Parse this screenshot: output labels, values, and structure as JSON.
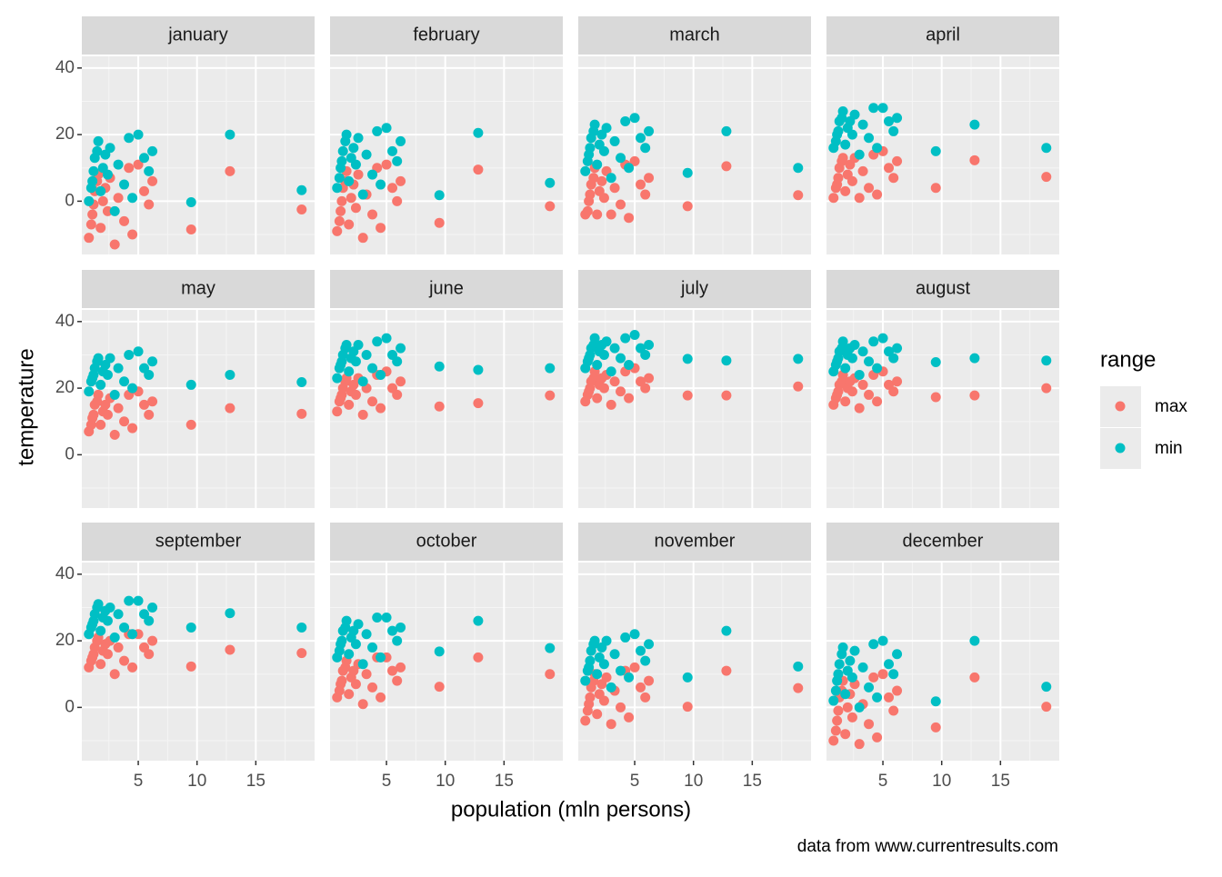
{
  "figure": {
    "xlabel": "population (mln persons)",
    "ylabel": "temperature",
    "legend_title": "range",
    "caption": "data from www.currentresults.com"
  },
  "chart_data": [
    {
      "type": "scatter",
      "title": "january",
      "x": [
        0.8,
        1.0,
        1.1,
        1.2,
        1.3,
        1.5,
        1.6,
        1.8,
        2.0,
        2.2,
        2.4,
        2.6,
        3.0,
        3.3,
        3.8,
        4.2,
        4.5,
        5.0,
        5.5,
        5.9,
        6.2,
        9.5,
        12.8,
        18.9
      ],
      "xlim": [
        0.2,
        20
      ],
      "ylim": [
        -16,
        43.5
      ],
      "xticks": [
        5,
        10,
        15
      ],
      "yticks": [
        0,
        20,
        40
      ],
      "series": [
        {
          "name": "max",
          "color": "#F8766D",
          "values": [
            -11,
            -7,
            -4,
            -1,
            3,
            6,
            8,
            -8,
            0,
            4,
            -3,
            7,
            -13,
            1,
            -6,
            10,
            -10,
            11,
            3,
            -1,
            6,
            -8.5,
            9,
            -2.5
          ]
        },
        {
          "name": "min",
          "color": "#00BFC4",
          "values": [
            0,
            4,
            6,
            9,
            13,
            15,
            18,
            3,
            10,
            14,
            8,
            16,
            -3,
            11,
            5,
            19,
            1,
            20,
            13,
            9,
            15,
            -0.3,
            20,
            3.3
          ]
        }
      ]
    },
    {
      "type": "scatter",
      "title": "february",
      "x": [
        0.8,
        1.0,
        1.1,
        1.2,
        1.3,
        1.5,
        1.6,
        1.8,
        2.0,
        2.2,
        2.4,
        2.6,
        3.0,
        3.3,
        3.8,
        4.2,
        4.5,
        5.0,
        5.5,
        5.9,
        6.2,
        9.5,
        12.8,
        18.9
      ],
      "xlim": [
        0.2,
        20
      ],
      "ylim": [
        -16,
        43.5
      ],
      "xticks": [
        5,
        10,
        15
      ],
      "yticks": [
        0,
        20,
        40
      ],
      "series": [
        {
          "name": "max",
          "color": "#F8766D",
          "values": [
            -9,
            -6,
            -3,
            0,
            4,
            6,
            9,
            -7,
            1,
            5,
            -2,
            8,
            -11,
            2,
            -4,
            10,
            -8,
            11,
            4,
            0,
            6,
            -6.5,
            9.5,
            -1.5
          ]
        },
        {
          "name": "min",
          "color": "#00BFC4",
          "values": [
            4,
            7,
            10,
            12,
            15,
            18,
            20,
            6,
            13,
            16,
            11,
            19,
            2,
            14,
            8,
            21,
            5,
            22,
            15,
            12,
            18,
            1.8,
            20.5,
            5.5
          ]
        }
      ]
    },
    {
      "type": "scatter",
      "title": "march",
      "x": [
        0.8,
        1.0,
        1.1,
        1.2,
        1.3,
        1.5,
        1.6,
        1.8,
        2.0,
        2.2,
        2.4,
        2.6,
        3.0,
        3.3,
        3.8,
        4.2,
        4.5,
        5.0,
        5.5,
        5.9,
        6.2,
        9.5,
        12.8,
        18.9
      ],
      "xlim": [
        0.2,
        20
      ],
      "ylim": [
        -16,
        43.5
      ],
      "xticks": [
        5,
        10,
        15
      ],
      "yticks": [
        0,
        20,
        40
      ],
      "series": [
        {
          "name": "max",
          "color": "#F8766D",
          "values": [
            -4,
            -3,
            0,
            2,
            5,
            7,
            10,
            -4,
            3,
            6,
            1,
            9,
            -4,
            4,
            -1,
            11,
            -5,
            12,
            5,
            2,
            7,
            -1.5,
            10.5,
            1.8
          ]
        },
        {
          "name": "min",
          "color": "#00BFC4",
          "values": [
            9,
            12,
            14,
            16,
            19,
            21,
            23,
            11,
            17,
            20,
            15,
            22,
            7,
            18,
            13,
            24,
            10,
            25,
            19,
            16,
            21,
            8.5,
            21,
            10
          ]
        }
      ]
    },
    {
      "type": "scatter",
      "title": "april",
      "x": [
        0.8,
        1.0,
        1.1,
        1.2,
        1.3,
        1.5,
        1.6,
        1.8,
        2.0,
        2.2,
        2.4,
        2.6,
        3.0,
        3.3,
        3.8,
        4.2,
        4.5,
        5.0,
        5.5,
        5.9,
        6.2,
        9.5,
        12.8,
        18.9
      ],
      "xlim": [
        0.2,
        20
      ],
      "ylim": [
        -16,
        43.5
      ],
      "xticks": [
        5,
        10,
        15
      ],
      "yticks": [
        0,
        20,
        40
      ],
      "series": [
        {
          "name": "max",
          "color": "#F8766D",
          "values": [
            1,
            4,
            5,
            7,
            10,
            12,
            13,
            3,
            8,
            11,
            6,
            13,
            1,
            9,
            4,
            14,
            2,
            15,
            10,
            7,
            12,
            4,
            12.3,
            7.3
          ]
        },
        {
          "name": "min",
          "color": "#00BFC4",
          "values": [
            16,
            18,
            20,
            21,
            24,
            25,
            27,
            17,
            22,
            24,
            20,
            26,
            14,
            23,
            19,
            28,
            16,
            28,
            24,
            21,
            25,
            15,
            23,
            16
          ]
        }
      ]
    },
    {
      "type": "scatter",
      "title": "may",
      "x": [
        0.8,
        1.0,
        1.1,
        1.2,
        1.3,
        1.5,
        1.6,
        1.8,
        2.0,
        2.2,
        2.4,
        2.6,
        3.0,
        3.3,
        3.8,
        4.2,
        4.5,
        5.0,
        5.5,
        5.9,
        6.2,
        9.5,
        12.8,
        18.9
      ],
      "xlim": [
        0.2,
        20
      ],
      "ylim": [
        -16,
        43.5
      ],
      "xticks": [
        5,
        10,
        15
      ],
      "yticks": [
        0,
        20,
        40
      ],
      "series": [
        {
          "name": "max",
          "color": "#F8766D",
          "values": [
            7,
            9,
            11,
            12,
            15,
            16,
            18,
            9,
            13,
            15,
            12,
            17,
            6,
            14,
            10,
            18,
            8,
            19,
            15,
            12,
            16,
            9,
            14,
            12.3
          ]
        },
        {
          "name": "min",
          "color": "#00BFC4",
          "values": [
            19,
            22,
            23,
            24,
            26,
            28,
            29,
            21,
            25,
            27,
            24,
            29,
            18,
            26,
            22,
            30,
            20,
            31,
            26,
            24,
            28,
            21,
            24,
            21.8
          ]
        }
      ]
    },
    {
      "type": "scatter",
      "title": "june",
      "x": [
        0.8,
        1.0,
        1.1,
        1.2,
        1.3,
        1.5,
        1.6,
        1.8,
        2.0,
        2.2,
        2.4,
        2.6,
        3.0,
        3.3,
        3.8,
        4.2,
        4.5,
        5.0,
        5.5,
        5.9,
        6.2,
        9.5,
        12.8,
        18.9
      ],
      "xlim": [
        0.2,
        20
      ],
      "ylim": [
        -16,
        43.5
      ],
      "xticks": [
        5,
        10,
        15
      ],
      "yticks": [
        0,
        20,
        40
      ],
      "series": [
        {
          "name": "max",
          "color": "#F8766D",
          "values": [
            13,
            16,
            17,
            18,
            20,
            22,
            23,
            15,
            19,
            21,
            18,
            23,
            12,
            20,
            16,
            24,
            14,
            25,
            20,
            18,
            22,
            14.5,
            15.5,
            17.8
          ]
        },
        {
          "name": "min",
          "color": "#00BFC4",
          "values": [
            23,
            26,
            27,
            28,
            30,
            32,
            33,
            25,
            29,
            31,
            28,
            33,
            22,
            30,
            26,
            34,
            24,
            35,
            30,
            28,
            32,
            26.5,
            25.5,
            26
          ]
        }
      ]
    },
    {
      "type": "scatter",
      "title": "july",
      "x": [
        0.8,
        1.0,
        1.1,
        1.2,
        1.3,
        1.5,
        1.6,
        1.8,
        2.0,
        2.2,
        2.4,
        2.6,
        3.0,
        3.3,
        3.8,
        4.2,
        4.5,
        5.0,
        5.5,
        5.9,
        6.2,
        9.5,
        12.8,
        18.9
      ],
      "xlim": [
        0.2,
        20
      ],
      "ylim": [
        -16,
        43.5
      ],
      "xticks": [
        5,
        10,
        15
      ],
      "yticks": [
        0,
        20,
        40
      ],
      "series": [
        {
          "name": "max",
          "color": "#F8766D",
          "values": [
            16,
            18,
            19,
            20,
            22,
            23,
            25,
            17,
            21,
            23,
            20,
            24,
            15,
            22,
            19,
            25,
            17,
            26,
            22,
            20,
            23,
            17.8,
            17.8,
            20.5
          ]
        },
        {
          "name": "min",
          "color": "#00BFC4",
          "values": [
            26,
            28,
            29,
            30,
            32,
            33,
            35,
            27,
            31,
            33,
            30,
            34,
            25,
            32,
            29,
            35,
            27,
            36,
            32,
            30,
            33,
            28.8,
            28.3,
            28.8
          ]
        }
      ]
    },
    {
      "type": "scatter",
      "title": "august",
      "x": [
        0.8,
        1.0,
        1.1,
        1.2,
        1.3,
        1.5,
        1.6,
        1.8,
        2.0,
        2.2,
        2.4,
        2.6,
        3.0,
        3.3,
        3.8,
        4.2,
        4.5,
        5.0,
        5.5,
        5.9,
        6.2,
        9.5,
        12.8,
        18.9
      ],
      "xlim": [
        0.2,
        20
      ],
      "ylim": [
        -16,
        43.5
      ],
      "xticks": [
        5,
        10,
        15
      ],
      "yticks": [
        0,
        20,
        40
      ],
      "series": [
        {
          "name": "max",
          "color": "#F8766D",
          "values": [
            15,
            17,
            18,
            19,
            21,
            22,
            24,
            16,
            20,
            22,
            19,
            23,
            14,
            21,
            18,
            24,
            16,
            25,
            21,
            19,
            22,
            17.3,
            17.8,
            20
          ]
        },
        {
          "name": "min",
          "color": "#00BFC4",
          "values": [
            25,
            27,
            28,
            29,
            31,
            32,
            34,
            26,
            30,
            32,
            29,
            33,
            24,
            31,
            28,
            34,
            26,
            35,
            31,
            29,
            32,
            27.8,
            29,
            28.3
          ]
        }
      ]
    },
    {
      "type": "scatter",
      "title": "september",
      "x": [
        0.8,
        1.0,
        1.1,
        1.2,
        1.3,
        1.5,
        1.6,
        1.8,
        2.0,
        2.2,
        2.4,
        2.6,
        3.0,
        3.3,
        3.8,
        4.2,
        4.5,
        5.0,
        5.5,
        5.9,
        6.2,
        9.5,
        12.8,
        18.9
      ],
      "xlim": [
        0.2,
        20
      ],
      "ylim": [
        -16,
        43.5
      ],
      "xticks": [
        5,
        10,
        15
      ],
      "yticks": [
        0,
        20,
        40
      ],
      "series": [
        {
          "name": "max",
          "color": "#F8766D",
          "values": [
            12,
            14,
            15,
            16,
            18,
            20,
            21,
            13,
            17,
            19,
            16,
            20,
            10,
            18,
            14,
            22,
            12,
            22,
            18,
            16,
            20,
            12.3,
            17.3,
            16.3
          ]
        },
        {
          "name": "min",
          "color": "#00BFC4",
          "values": [
            22,
            24,
            25,
            26,
            28,
            30,
            31,
            23,
            27,
            29,
            26,
            30,
            21,
            28,
            24,
            32,
            22,
            32,
            28,
            26,
            30,
            24,
            28.3,
            24
          ]
        }
      ]
    },
    {
      "type": "scatter",
      "title": "october",
      "x": [
        0.8,
        1.0,
        1.1,
        1.2,
        1.3,
        1.5,
        1.6,
        1.8,
        2.0,
        2.2,
        2.4,
        2.6,
        3.0,
        3.3,
        3.8,
        4.2,
        4.5,
        5.0,
        5.5,
        5.9,
        6.2,
        9.5,
        12.8,
        18.9
      ],
      "xlim": [
        0.2,
        20
      ],
      "ylim": [
        -16,
        43.5
      ],
      "xticks": [
        5,
        10,
        15
      ],
      "yticks": [
        0,
        20,
        40
      ],
      "series": [
        {
          "name": "max",
          "color": "#F8766D",
          "values": [
            3,
            5,
            7,
            8,
            11,
            12,
            14,
            4,
            9,
            11,
            7,
            13,
            1,
            10,
            6,
            15,
            3,
            15,
            11,
            8,
            12,
            6.2,
            15,
            10
          ]
        },
        {
          "name": "min",
          "color": "#00BFC4",
          "values": [
            15,
            17,
            19,
            20,
            23,
            24,
            26,
            16,
            21,
            23,
            19,
            25,
            13,
            22,
            18,
            27,
            15,
            27,
            23,
            20,
            24,
            16.8,
            26,
            17.8
          ]
        }
      ]
    },
    {
      "type": "scatter",
      "title": "november",
      "x": [
        0.8,
        1.0,
        1.1,
        1.2,
        1.3,
        1.5,
        1.6,
        1.8,
        2.0,
        2.2,
        2.4,
        2.6,
        3.0,
        3.3,
        3.8,
        4.2,
        4.5,
        5.0,
        5.5,
        5.9,
        6.2,
        9.5,
        12.8,
        18.9
      ],
      "xlim": [
        0.2,
        20
      ],
      "ylim": [
        -16,
        43.5
      ],
      "xticks": [
        5,
        10,
        15
      ],
      "yticks": [
        0,
        20,
        40
      ],
      "series": [
        {
          "name": "max",
          "color": "#F8766D",
          "values": [
            -4,
            -1,
            1,
            3,
            6,
            8,
            10,
            -2,
            4,
            7,
            2,
            9,
            -5,
            5,
            0,
            11,
            -3,
            12,
            6,
            3,
            8,
            0.2,
            11,
            5.8
          ]
        },
        {
          "name": "min",
          "color": "#00BFC4",
          "values": [
            8,
            11,
            12,
            14,
            17,
            19,
            20,
            10,
            15,
            18,
            13,
            20,
            6,
            16,
            11,
            21,
            9,
            22,
            17,
            14,
            19,
            9,
            23,
            12.3
          ]
        }
      ]
    },
    {
      "type": "scatter",
      "title": "december",
      "x": [
        0.8,
        1.0,
        1.1,
        1.2,
        1.3,
        1.5,
        1.6,
        1.8,
        2.0,
        2.2,
        2.4,
        2.6,
        3.0,
        3.3,
        3.8,
        4.2,
        4.5,
        5.0,
        5.5,
        5.9,
        6.2,
        9.5,
        12.8,
        18.9
      ],
      "xlim": [
        0.2,
        20
      ],
      "ylim": [
        -16,
        43.5
      ],
      "xticks": [
        5,
        10,
        15
      ],
      "yticks": [
        0,
        20,
        40
      ],
      "series": [
        {
          "name": "max",
          "color": "#F8766D",
          "values": [
            -10,
            -7,
            -4,
            -1,
            3,
            5,
            8,
            -8,
            0,
            4,
            -3,
            7,
            -11,
            1,
            -5,
            9,
            -9,
            10,
            3,
            -1,
            5,
            -6,
            9,
            0.2
          ]
        },
        {
          "name": "min",
          "color": "#00BFC4",
          "values": [
            2,
            5,
            8,
            10,
            13,
            16,
            18,
            4,
            11,
            14,
            9,
            17,
            0,
            12,
            6,
            19,
            3,
            20,
            13,
            10,
            16,
            1.8,
            20,
            6.2
          ]
        }
      ]
    }
  ]
}
